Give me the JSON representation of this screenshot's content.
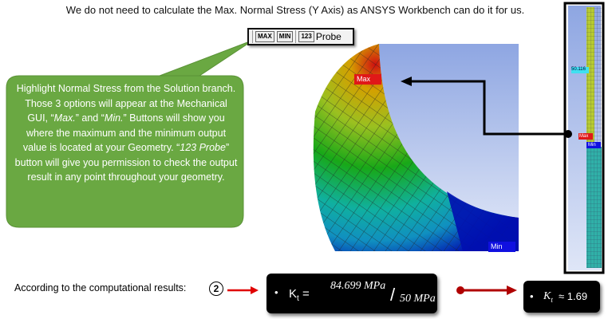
{
  "title": "We do not need to calculate the Max. Normal Stress (Y Axis) as ANSYS Workbench can do it for us.",
  "toolbar": {
    "max_label": "MAX",
    "min_label": "MIN",
    "probe_icon_label": "123",
    "probe_label": "Probe"
  },
  "callout": {
    "lines": [
      "Highlight Normal Stress from the Solution branch. Those 3 options will appear at the Mechanical GUI, “",
      "Max.",
      "” and “",
      "Min.",
      "” Buttons will show you where the maximum and the minimum output value is located at your Geometry. “",
      "123 Probe",
      "” button will give you permission to check the output result in any point throughout your geometry."
    ],
    "color": "#6aa842"
  },
  "contour": {
    "max_tag": "Max",
    "min_tag": "Min"
  },
  "side_model": {
    "probe_value": "50.116",
    "max_tag": "Max",
    "min_tag": "Min"
  },
  "result": {
    "intro": "According to the computational results:",
    "step": "2",
    "kt_symbol": "K",
    "kt_sub": "t",
    "numerator": "84.699 MPa",
    "denominator": "50 MPa",
    "approx": "≈ 1.69",
    "arrow_color": "#e00000"
  }
}
